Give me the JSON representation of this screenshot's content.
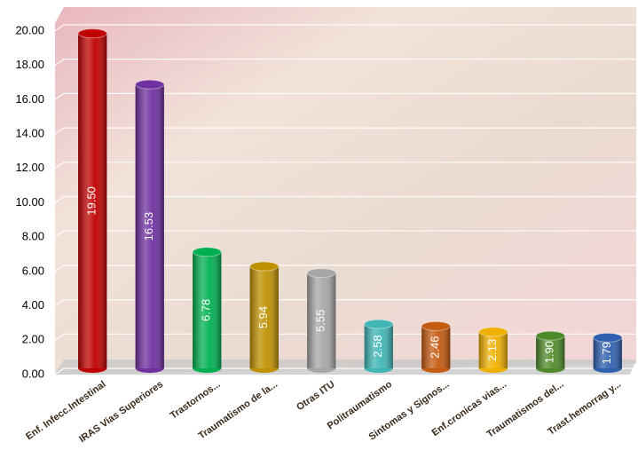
{
  "chart_data": {
    "type": "bar",
    "categories": [
      "Enf. Infecc.Intestinal",
      "IRAS Vias Superiores",
      "Trastornos...",
      "Traumatismo de la...",
      "Otras ITU",
      "Politraumatismo",
      "Sintomas y Signos...",
      "Enf.cronicas vias...",
      "Traumatismos del...",
      "Trast.hemorrag y..."
    ],
    "values": [
      19.5,
      16.53,
      6.78,
      5.94,
      5.55,
      2.58,
      2.46,
      2.13,
      1.9,
      1.79
    ],
    "value_labels": [
      "19.50",
      "16.53",
      "6.78",
      "5.94",
      "5.55",
      "2.58",
      "2.46",
      "2.13",
      "1.90",
      "1.79"
    ],
    "colors": [
      "#c00000",
      "#7030a0",
      "#00b050",
      "#bf9000",
      "#a6a6a6",
      "#3fb5b5",
      "#c55a11",
      "#f0b000",
      "#4f8a2a",
      "#2f5faf"
    ],
    "ylim": [
      0,
      20
    ],
    "yticks": [
      {
        "value": 0,
        "label": "0.00"
      },
      {
        "value": 2,
        "label": "2.00"
      },
      {
        "value": 4,
        "label": "4.00"
      },
      {
        "value": 6,
        "label": "6.00"
      },
      {
        "value": 8,
        "label": "8.00"
      },
      {
        "value": 10,
        "label": "10.00"
      },
      {
        "value": 12,
        "label": "12.00"
      },
      {
        "value": 14,
        "label": "14.00"
      },
      {
        "value": 16,
        "label": "16.00"
      },
      {
        "value": 18,
        "label": "18.00"
      },
      {
        "value": 20,
        "label": "20.00"
      }
    ],
    "grid": true
  }
}
